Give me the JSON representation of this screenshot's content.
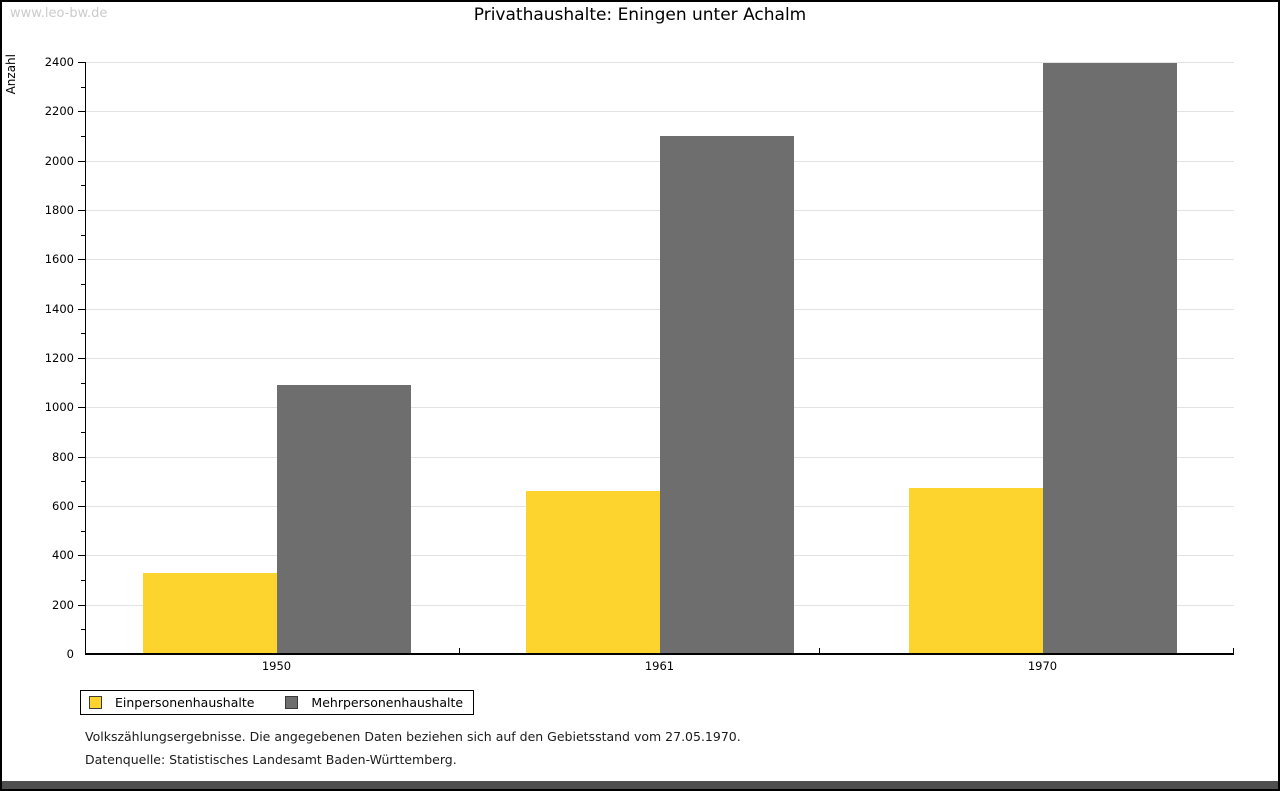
{
  "watermark": "www.leo-bw.de",
  "chart_data": {
    "type": "bar",
    "title": "Privathaushalte: Eningen unter Achalm",
    "ylabel": "Anzahl",
    "xlabel": "",
    "categories": [
      "1950",
      "1961",
      "1970"
    ],
    "series": [
      {
        "name": "Einpersonenhaushalte",
        "color": "#FDD42E",
        "values": [
          330,
          660,
          675
        ]
      },
      {
        "name": "Mehrpersonenhaushalte",
        "color": "#6E6E6E",
        "values": [
          1090,
          2100,
          2395
        ]
      }
    ],
    "ylim": [
      0,
      2400
    ],
    "ytick_step": 200,
    "yminor_step": 100,
    "grid": "horizontal-major-only",
    "legend_position": "bottom-left"
  },
  "footnotes": [
    "Volkszählungsergebnisse. Die angegebenen Daten beziehen sich auf den Gebietsstand vom 27.05.1970.",
    "Datenquelle: Statistisches Landesamt Baden-Württemberg."
  ],
  "colors": {
    "gridline": "#E3E3E3",
    "axis": "#000000",
    "watermark": "#CBCBCB",
    "window_edge": "#4F4F4F"
  }
}
